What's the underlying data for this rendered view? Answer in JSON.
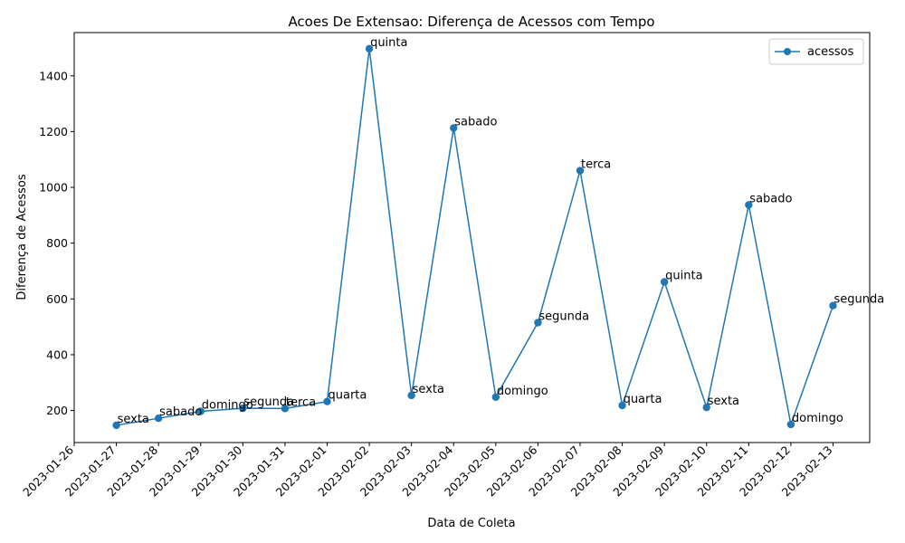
{
  "chart_data": {
    "type": "line",
    "title": "Acoes De Extensao: Diferença de Acessos com Tempo",
    "xlabel": "Data de Coleta",
    "ylabel": "Diferença de Acessos",
    "x_ticks": [
      "2023-01-26",
      "2023-01-27",
      "2023-01-28",
      "2023-01-29",
      "2023-01-30",
      "2023-01-31",
      "2023-02-01",
      "2023-02-02",
      "2023-02-03",
      "2023-02-04",
      "2023-02-05",
      "2023-02-06",
      "2023-02-07",
      "2023-02-08",
      "2023-02-09",
      "2023-02-10",
      "2023-02-11",
      "2023-02-12",
      "2023-02-13"
    ],
    "y_ticks": [
      200,
      400,
      600,
      800,
      1000,
      1200,
      1400
    ],
    "ylim": [
      85,
      1555
    ],
    "xlim": [
      "2023-01-26",
      "2023-02-13"
    ],
    "grid": false,
    "legend_position": "top-right",
    "series": [
      {
        "name": "acessos",
        "color": "#1f77b4",
        "marker": "circle",
        "x": [
          "2023-01-27",
          "2023-01-28",
          "2023-01-29",
          "2023-01-30",
          "2023-01-31",
          "2023-02-01",
          "2023-02-02",
          "2023-02-03",
          "2023-02-04",
          "2023-02-05",
          "2023-02-06",
          "2023-02-07",
          "2023-02-08",
          "2023-02-09",
          "2023-02-10",
          "2023-02-11",
          "2023-02-12",
          "2023-02-13"
        ],
        "values": [
          147,
          172,
          197,
          208,
          207,
          232,
          1497,
          254,
          1213,
          248,
          515,
          1060,
          218,
          661,
          211,
          937,
          150,
          576
        ],
        "labels": [
          "sexta",
          "sabado",
          "domingo",
          "segunda",
          "terca",
          "quarta",
          "quinta",
          "sexta",
          "sabado",
          "domingo",
          "segunda",
          "terca",
          "quarta",
          "quinta",
          "sexta",
          "sabado",
          "domingo",
          "segunda"
        ]
      }
    ]
  }
}
